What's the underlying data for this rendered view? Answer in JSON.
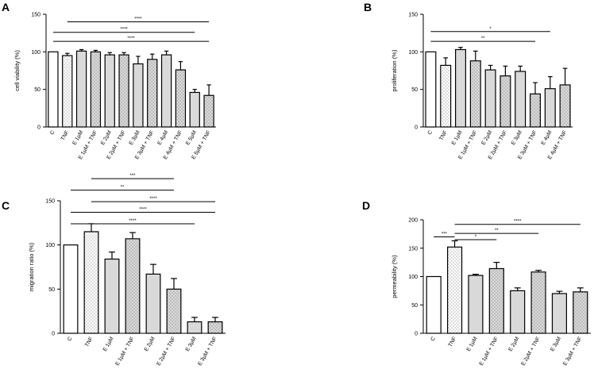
{
  "panels": [
    {
      "label": "A",
      "type": "bar",
      "ylabel": "cell viability (%)",
      "ylim": [
        0,
        150
      ],
      "yticks": [
        0,
        50,
        100,
        150
      ],
      "categories": [
        "C",
        "TNF",
        "E 1µM",
        "E 1µM + TNF",
        "E 2µM",
        "E 2µM + TNF",
        "E 3µM",
        "E 3µM + TNF",
        "E 4µM",
        "E 4µM + TNF",
        "E 5µM",
        "E 5µM + TNF"
      ],
      "values": [
        100,
        95,
        101,
        100,
        96,
        96,
        84,
        90,
        96,
        76,
        46,
        42
      ],
      "errors": [
        0,
        3,
        2,
        2,
        3,
        3,
        10,
        7,
        5,
        11,
        4,
        14
      ],
      "fills": [
        "white",
        "dots",
        "gray",
        "grayDots",
        "gray",
        "grayDots",
        "gray",
        "grayDots",
        "gray",
        "grayDots",
        "gray",
        "grayDots"
      ],
      "significance": [
        {
          "from": 1,
          "to": 11,
          "y": 140,
          "label": "****"
        },
        {
          "from": 0,
          "to": 10,
          "y": 126,
          "label": "****"
        },
        {
          "from": 0,
          "to": 11,
          "y": 114,
          "label": "****"
        }
      ]
    },
    {
      "label": "B",
      "type": "bar",
      "ylabel": "proliferation (%)",
      "ylim": [
        0,
        150
      ],
      "yticks": [
        0,
        50,
        100,
        150
      ],
      "categories": [
        "C",
        "TNF",
        "E 1µM",
        "E 1µM + TNF",
        "E 2µM",
        "E 2µM + TNF",
        "E 3µM",
        "E 3µM + TNF",
        "E 4µM",
        "E 4µM + TNF"
      ],
      "values": [
        100,
        82,
        103,
        88,
        76,
        68,
        74,
        44,
        51,
        56
      ],
      "errors": [
        0,
        10,
        3,
        13,
        6,
        13,
        7,
        15,
        16,
        22
      ],
      "fills": [
        "white",
        "dots",
        "gray",
        "grayDots",
        "gray",
        "grayDots",
        "gray",
        "grayDots",
        "gray",
        "grayDots"
      ],
      "significance": [
        {
          "from": 0,
          "to": 8,
          "y": 127,
          "label": "*"
        },
        {
          "from": 0,
          "to": 7,
          "y": 114,
          "label": "**"
        }
      ]
    },
    {
      "label": "C",
      "type": "bar",
      "ylabel": "migration ratio (%)",
      "ylim": [
        0,
        150
      ],
      "yticks": [
        0,
        50,
        100,
        150
      ],
      "categories": [
        "C",
        "TNF",
        "E 1µM",
        "E 1µM + TNF",
        "E 2µM",
        "E 2µM + TNF",
        "E 3µM",
        "E 3µM + TNF"
      ],
      "values": [
        100,
        115,
        84,
        107,
        67,
        50,
        13,
        13
      ],
      "errors": [
        0,
        9,
        8,
        7,
        11,
        12,
        5,
        5
      ],
      "fills": [
        "white",
        "dots",
        "gray",
        "grayDots",
        "gray",
        "grayDots",
        "gray",
        "grayDots"
      ],
      "significance": [
        {
          "from": 1,
          "to": 5,
          "y": 175,
          "label": "***"
        },
        {
          "from": 0,
          "to": 5,
          "y": 162,
          "label": "**"
        },
        {
          "from": 1,
          "to": 7,
          "y": 149,
          "label": "****"
        },
        {
          "from": 0,
          "to": 7,
          "y": 137,
          "label": "****"
        },
        {
          "from": 0,
          "to": 6,
          "y": 124,
          "label": "****"
        }
      ]
    },
    {
      "label": "D",
      "type": "bar",
      "ylabel": "permeability (%)",
      "ylim": [
        0,
        200
      ],
      "yticks": [
        0,
        50,
        100,
        150,
        200
      ],
      "categories": [
        "C",
        "TNF",
        "E 1µM",
        "E 1µM + TNF",
        "E 2µM",
        "E 2µM + TNF",
        "E 3µM",
        "E 3µM + TNF"
      ],
      "values": [
        100,
        152,
        102,
        114,
        75,
        108,
        70,
        73
      ],
      "errors": [
        0,
        11,
        2,
        11,
        5,
        3,
        4,
        7
      ],
      "fills": [
        "white",
        "dots",
        "gray",
        "grayDots",
        "gray",
        "grayDots",
        "gray",
        "grayDots"
      ],
      "significance": [
        {
          "from": 0,
          "to": 1,
          "y": 170,
          "label": "***"
        },
        {
          "from": 1,
          "to": 3,
          "y": 165,
          "label": "*"
        },
        {
          "from": 1,
          "to": 5,
          "y": 176,
          "label": "**"
        },
        {
          "from": 1,
          "to": 7,
          "y": 192,
          "label": "****"
        }
      ]
    }
  ],
  "colors": {
    "axis": "#000000",
    "bar_gray": "#d9d9d9",
    "bar_white": "#ffffff",
    "dot": "#555555"
  }
}
